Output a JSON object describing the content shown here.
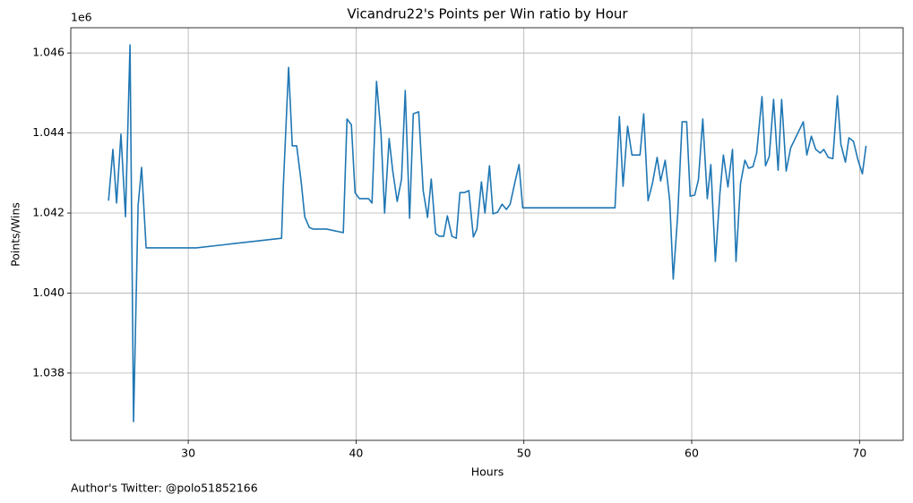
{
  "chart_data": {
    "type": "line",
    "title": "Vicandru22's Points per Win ratio by Hour",
    "x_label": "Hours",
    "y_label": "Points/Wins",
    "y_offset_label": "1e6",
    "annotation": "Author's Twitter: @polo51852166",
    "color": "#1f77b4",
    "grid": true,
    "xlim": [
      23.0,
      72.6
    ],
    "xticks": [
      30,
      40,
      50,
      60,
      70
    ],
    "ylim": [
      1.03632,
      1.04663
    ],
    "yticks": [
      1.038,
      {
        "value": 1.04,
        "label": "1.040"
      },
      1.042,
      1.044,
      1.046
    ],
    "x": [
      25.25,
      25.51,
      25.73,
      25.99,
      26.26,
      26.53,
      26.74,
      27.01,
      27.22,
      27.49,
      30.48,
      35.56,
      35.66,
      35.98,
      36.2,
      36.46,
      36.73,
      36.94,
      37.21,
      37.43,
      38.23,
      39.24,
      39.46,
      39.72,
      39.94,
      40.2,
      40.74,
      40.95,
      41.22,
      41.49,
      41.7,
      41.97,
      42.18,
      42.45,
      42.71,
      42.93,
      43.19,
      43.41,
      43.73,
      44.0,
      44.26,
      44.48,
      44.74,
      44.96,
      45.22,
      45.44,
      45.71,
      45.97,
      46.19,
      46.45,
      46.72,
      46.99,
      47.2,
      47.47,
      47.68,
      47.95,
      48.16,
      48.43,
      48.7,
      48.96,
      49.18,
      49.44,
      49.71,
      49.93,
      55.43,
      55.69,
      55.91,
      56.18,
      56.44,
      56.92,
      57.14,
      57.4,
      57.67,
      57.94,
      58.15,
      58.42,
      58.69,
      58.9,
      59.17,
      59.43,
      59.7,
      59.91,
      60.18,
      60.4,
      60.66,
      60.93,
      61.14,
      61.41,
      61.68,
      61.89,
      62.16,
      62.43,
      62.64,
      62.91,
      63.17,
      63.39,
      63.65,
      63.87,
      64.19,
      64.4,
      64.62,
      64.88,
      65.15,
      65.36,
      65.63,
      65.9,
      66.65,
      66.86,
      67.13,
      67.39,
      67.66,
      67.87,
      68.14,
      68.41,
      68.68,
      68.89,
      69.16,
      69.37,
      69.64,
      69.9,
      70.17,
      70.39
    ],
    "values": [
      1.04231,
      1.04359,
      1.04225,
      1.04397,
      1.04191,
      1.0462,
      1.03679,
      1.04218,
      1.04314,
      1.04113,
      1.04113,
      1.04137,
      1.04263,
      1.04564,
      1.04368,
      1.04368,
      1.04278,
      1.04191,
      1.04164,
      1.0416,
      1.0416,
      1.04151,
      1.04435,
      1.04421,
      1.04251,
      1.04236,
      1.04236,
      1.04225,
      1.04529,
      1.04397,
      1.042,
      1.04386,
      1.04307,
      1.04229,
      1.04285,
      1.04506,
      1.04187,
      1.04448,
      1.04453,
      1.04256,
      1.04189,
      1.04285,
      1.04149,
      1.04142,
      1.04142,
      1.04193,
      1.04142,
      1.04137,
      1.04251,
      1.04251,
      1.04256,
      1.0414,
      1.0416,
      1.04278,
      1.042,
      1.04318,
      1.04198,
      1.04202,
      1.04222,
      1.04209,
      1.04222,
      1.04272,
      1.04321,
      1.04213,
      1.04213,
      1.04441,
      1.04267,
      1.04417,
      1.04345,
      1.04345,
      1.04448,
      1.04231,
      1.04276,
      1.04339,
      1.0428,
      1.04332,
      1.04231,
      1.04035,
      1.04198,
      1.04428,
      1.04428,
      1.04242,
      1.04245,
      1.04283,
      1.04435,
      1.04236,
      1.04321,
      1.04079,
      1.04249,
      1.04345,
      1.04265,
      1.04359,
      1.04079,
      1.04274,
      1.04332,
      1.04312,
      1.04316,
      1.0435,
      1.04491,
      1.04318,
      1.04341,
      1.04484,
      1.04307,
      1.04484,
      1.04305,
      1.04363,
      1.04428,
      1.04345,
      1.04392,
      1.04359,
      1.0435,
      1.04359,
      1.04339,
      1.04336,
      1.04493,
      1.04372,
      1.04327,
      1.04388,
      1.04379,
      1.04334,
      1.04298,
      1.04368
    ]
  }
}
